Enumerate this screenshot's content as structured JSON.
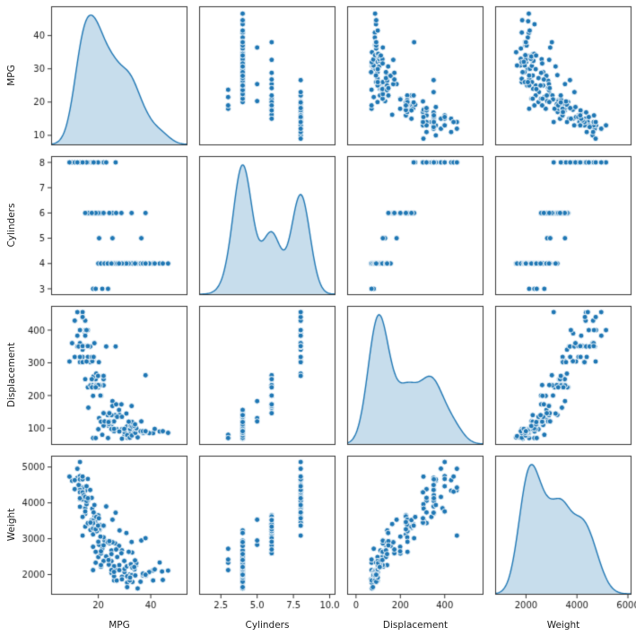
{
  "figure": {
    "background": "#ffffff",
    "colors": {
      "marker": "#1f77b4",
      "marker_edge": "#ffffff",
      "kde_line": "#1f77b4",
      "kde_fill": "rgba(31,119,180,0.25)",
      "axis": "#333333",
      "text": "#1a1a1a"
    }
  },
  "chart_data": {
    "type": "scatter",
    "subtype": "pairplot-matrix",
    "diagonal": "kde",
    "grid": "off",
    "legend": "none",
    "columns": [
      "MPG",
      "Cylinders",
      "Displacement",
      "Weight"
    ],
    "x_axis_labels": [
      "MPG",
      "Cylinders",
      "Displacement",
      "Weight"
    ],
    "y_axis_labels": [
      "MPG",
      "Cylinders",
      "Displacement",
      "Weight"
    ],
    "axes": {
      "MPG": {
        "ylim": [
          7,
          48.8
        ],
        "yticks": [
          "10",
          "20",
          "30",
          "40"
        ],
        "xlim": [
          2,
          54
        ],
        "xticks": [
          "20",
          "40"
        ]
      },
      "Cylinders": {
        "ylim": [
          2.75,
          8.25
        ],
        "yticks": [
          "3",
          "4",
          "5",
          "6",
          "7",
          "8"
        ],
        "xlim": [
          1.0,
          10.4
        ],
        "xticks": [
          "2.5",
          "5.0",
          "7.5",
          "10.0"
        ]
      },
      "Displacement": {
        "ylim": [
          49,
          474
        ],
        "yticks": [
          "100",
          "200",
          "300",
          "400"
        ],
        "xlim": [
          -40,
          575
        ],
        "xticks": [
          "0",
          "200",
          "400"
        ]
      },
      "Weight": {
        "ylim": [
          1437,
          5316
        ],
        "yticks": [
          "2000",
          "3000",
          "4000",
          "5000"
        ],
        "xlim": [
          790,
          6140
        ],
        "xticks": [
          "2000",
          "4000",
          "6000"
        ]
      }
    },
    "records_columns": [
      "MPG",
      "Cylinders",
      "Displacement",
      "Weight"
    ],
    "records": [
      [
        18,
        3,
        70,
        2124
      ],
      [
        19,
        3,
        70,
        2330
      ],
      [
        21.5,
        3,
        80,
        2720
      ],
      [
        23.7,
        3,
        70,
        2420
      ],
      [
        20.3,
        5,
        131,
        2830
      ],
      [
        25.4,
        5,
        183,
        3530
      ],
      [
        36.4,
        5,
        121,
        2950
      ],
      [
        33,
        4,
        91,
        1795
      ],
      [
        27,
        4,
        97,
        2130
      ],
      [
        28,
        4,
        140,
        2264
      ],
      [
        25,
        4,
        98,
        2046
      ],
      [
        24,
        4,
        113,
        2372
      ],
      [
        26,
        4,
        97,
        1835
      ],
      [
        25,
        4,
        110,
        2672
      ],
      [
        24,
        4,
        107,
        2430
      ],
      [
        25,
        4,
        104,
        2375
      ],
      [
        26,
        4,
        121,
        2234
      ],
      [
        21,
        4,
        122,
        2220
      ],
      [
        30,
        4,
        79,
        2074
      ],
      [
        30,
        4,
        88,
        2065
      ],
      [
        31,
        4,
        71,
        1773
      ],
      [
        35,
        4,
        72,
        1613
      ],
      [
        27,
        4,
        97,
        1834
      ],
      [
        26,
        4,
        91,
        1955
      ],
      [
        24,
        4,
        113,
        2278
      ],
      [
        25,
        4,
        97.5,
        2126
      ],
      [
        29,
        4,
        97,
        1940
      ],
      [
        23,
        4,
        120,
        2506
      ],
      [
        20,
        4,
        97,
        2489
      ],
      [
        22,
        4,
        108,
        2379
      ],
      [
        21,
        4,
        120,
        2264
      ],
      [
        26,
        4,
        98,
        2074
      ],
      [
        28,
        4,
        90,
        2123
      ],
      [
        30,
        4,
        98,
        2155
      ],
      [
        32,
        4,
        83,
        2003
      ],
      [
        31,
        4,
        76,
        1649
      ],
      [
        29,
        4,
        68,
        1867
      ],
      [
        31,
        4,
        79,
        1950
      ],
      [
        32,
        4,
        71,
        1836
      ],
      [
        30.9,
        4,
        105,
        2230
      ],
      [
        37,
        4,
        85,
        1975
      ],
      [
        32.2,
        4,
        108,
        2265
      ],
      [
        46.6,
        4,
        86,
        2110
      ],
      [
        40.8,
        4,
        85,
        2110
      ],
      [
        44.3,
        4,
        90,
        2085
      ],
      [
        43.4,
        4,
        90,
        2335
      ],
      [
        44.6,
        4,
        91,
        1850
      ],
      [
        40.9,
        4,
        85,
        1835
      ],
      [
        33.8,
        4,
        97,
        2145
      ],
      [
        32.8,
        4,
        78,
        1985
      ],
      [
        39.4,
        4,
        85,
        2070
      ],
      [
        36.1,
        4,
        91,
        1800
      ],
      [
        32.1,
        4,
        98,
        1915
      ],
      [
        37.2,
        4,
        86,
        2019
      ],
      [
        26.4,
        4,
        140,
        2870
      ],
      [
        38.1,
        4,
        89,
        1968
      ],
      [
        32.4,
        4,
        107,
        2290
      ],
      [
        37,
        4,
        91,
        2025
      ],
      [
        41.5,
        4,
        98,
        2144
      ],
      [
        34.1,
        4,
        86,
        1975
      ],
      [
        34.4,
        4,
        98,
        2265
      ],
      [
        29.9,
        4,
        98,
        2380
      ],
      [
        33,
        4,
        105,
        2190
      ],
      [
        34.5,
        4,
        100,
        2320
      ],
      [
        33.7,
        4,
        107,
        2210
      ],
      [
        32.9,
        4,
        119,
        2615
      ],
      [
        31.6,
        4,
        120,
        2635
      ],
      [
        28.1,
        4,
        141,
        3230
      ],
      [
        30.7,
        4,
        145,
        3160
      ],
      [
        24.2,
        4,
        121,
        2868
      ],
      [
        22.4,
        4,
        121,
        2945
      ],
      [
        34,
        4,
        112,
        2395
      ],
      [
        38,
        4,
        91,
        1995
      ],
      [
        27.2,
        4,
        135,
        2490
      ],
      [
        23.9,
        4,
        119,
        2405
      ],
      [
        29,
        4,
        135,
        2675
      ],
      [
        27.9,
        4,
        156,
        2800
      ],
      [
        23.6,
        4,
        140,
        2905
      ],
      [
        25,
        4,
        140,
        2572
      ],
      [
        18,
        6,
        199,
        2774
      ],
      [
        21,
        6,
        200,
        2587
      ],
      [
        21,
        6,
        199,
        2648
      ],
      [
        19,
        6,
        232,
        2634
      ],
      [
        16,
        6,
        225,
        3439
      ],
      [
        17,
        6,
        231,
        3245
      ],
      [
        19,
        6,
        250,
        3302
      ],
      [
        18,
        6,
        232,
        3288
      ],
      [
        22,
        6,
        250,
        3353
      ],
      [
        18,
        6,
        225,
        3121
      ],
      [
        22,
        6,
        231,
        3039
      ],
      [
        20,
        6,
        225,
        3651
      ],
      [
        19,
        6,
        231,
        3425
      ],
      [
        20.5,
        6,
        231,
        3245
      ],
      [
        20.2,
        6,
        232,
        3265
      ],
      [
        19.4,
        6,
        232,
        3210
      ],
      [
        20.6,
        6,
        231,
        3380
      ],
      [
        20.8,
        6,
        200,
        3060
      ],
      [
        18.6,
        6,
        225,
        3620
      ],
      [
        18.1,
        6,
        258,
        3410
      ],
      [
        19.2,
        6,
        231,
        3535
      ],
      [
        17.6,
        6,
        225,
        3465
      ],
      [
        16.2,
        6,
        163,
        3410
      ],
      [
        32.7,
        6,
        168,
        2910
      ],
      [
        25.4,
        6,
        168,
        2900
      ],
      [
        24.2,
        6,
        146,
        2930
      ],
      [
        22,
        6,
        146,
        2815
      ],
      [
        38,
        6,
        262,
        3015
      ],
      [
        20,
        6,
        232,
        2914
      ],
      [
        19,
        6,
        225,
        3264
      ],
      [
        28.8,
        6,
        173,
        2595
      ],
      [
        26.8,
        6,
        173,
        2700
      ],
      [
        17.5,
        6,
        250,
        3520
      ],
      [
        15,
        6,
        250,
        3336
      ],
      [
        18,
        8,
        307,
        3504
      ],
      [
        15,
        8,
        350,
        3693
      ],
      [
        18,
        8,
        318,
        3436
      ],
      [
        16,
        8,
        304,
        3433
      ],
      [
        17,
        8,
        302,
        3449
      ],
      [
        15,
        8,
        429,
        4341
      ],
      [
        14,
        8,
        454,
        4354
      ],
      [
        14,
        8,
        440,
        4312
      ],
      [
        14,
        8,
        455,
        4425
      ],
      [
        15,
        8,
        390,
        3850
      ],
      [
        14,
        8,
        340,
        3609
      ],
      [
        15,
        8,
        400,
        3761
      ],
      [
        14,
        8,
        455,
        3086
      ],
      [
        10,
        8,
        360,
        4615
      ],
      [
        11,
        8,
        318,
        4382
      ],
      [
        9,
        8,
        304,
        4732
      ],
      [
        13,
        8,
        350,
        4100
      ],
      [
        12,
        8,
        383,
        4955
      ],
      [
        13,
        8,
        400,
        4464
      ],
      [
        13,
        8,
        351,
        4363
      ],
      [
        14,
        8,
        318,
        4077
      ],
      [
        13,
        8,
        304,
        3892
      ],
      [
        14,
        8,
        351,
        4154
      ],
      [
        14,
        8,
        318,
        4096
      ],
      [
        12,
        8,
        350,
        4699
      ],
      [
        13,
        8,
        400,
        4746
      ],
      [
        13,
        8,
        302,
        4295
      ],
      [
        16.5,
        8,
        350,
        4142
      ],
      [
        13,
        8,
        318,
        4135
      ],
      [
        13,
        8,
        351,
        4129
      ],
      [
        14,
        8,
        302,
        4294
      ],
      [
        16,
        8,
        318,
        4060
      ],
      [
        15.5,
        8,
        304,
        3962
      ],
      [
        14.5,
        8,
        351,
        4215
      ],
      [
        22,
        8,
        260,
        3365
      ],
      [
        17.7,
        8,
        305,
        3840
      ],
      [
        26.6,
        8,
        350,
        3725
      ],
      [
        23,
        8,
        350,
        3900
      ],
      [
        16.9,
        8,
        350,
        4360
      ],
      [
        15.5,
        8,
        351,
        4054
      ],
      [
        19.2,
        8,
        267,
        3605
      ],
      [
        18.5,
        8,
        360,
        3940
      ],
      [
        17.5,
        8,
        318,
        4140
      ],
      [
        20.2,
        8,
        302,
        3570
      ],
      [
        19.9,
        8,
        260,
        3365
      ],
      [
        18.2,
        8,
        318,
        3735
      ],
      [
        16,
        8,
        400,
        4668
      ],
      [
        15,
        8,
        383,
        4166
      ],
      [
        13,
        8,
        360,
        4654
      ],
      [
        11,
        8,
        429,
        4633
      ],
      [
        12.5,
        8,
        350,
        4499
      ],
      [
        14,
        8,
        351,
        4657
      ],
      [
        16,
        8,
        351,
        4129
      ],
      [
        15.5,
        8,
        400,
        4464
      ],
      [
        13,
        8,
        400,
        5140
      ],
      [
        14,
        8,
        440,
        4735
      ],
      [
        12,
        8,
        455,
        4951
      ]
    ]
  }
}
